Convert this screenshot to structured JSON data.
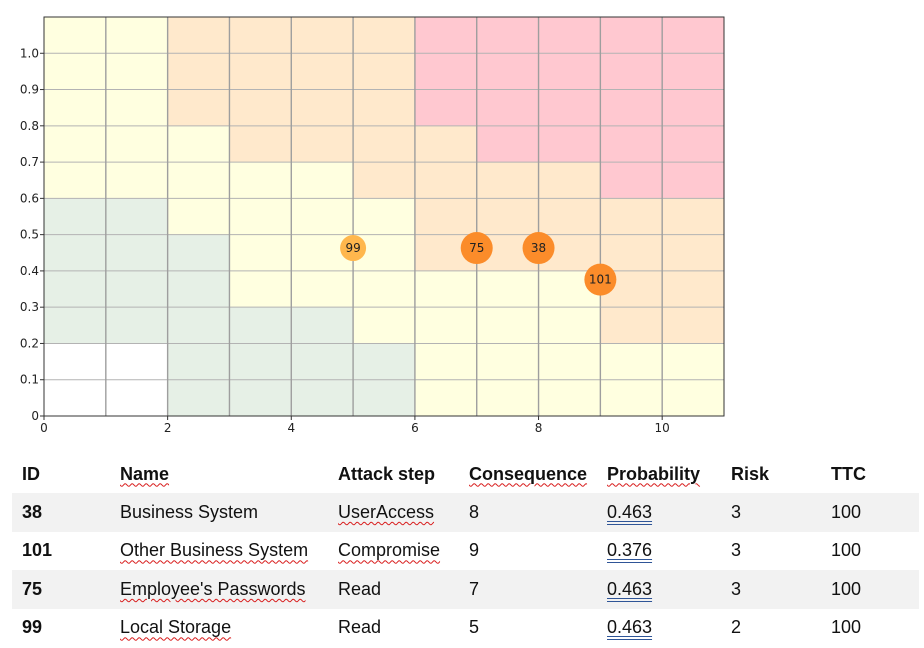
{
  "chart_data": {
    "type": "scatter",
    "title": "",
    "xlabel": "",
    "ylabel": "",
    "xlim": [
      0,
      11
    ],
    "ylim": [
      0,
      1.1
    ],
    "x_ticks": [
      "0",
      "2",
      "4",
      "6",
      "8",
      "10"
    ],
    "y_ticks": [
      "0",
      "0.1",
      "0.2",
      "0.3",
      "0.4",
      "0.5",
      "0.6",
      "0.7",
      "0.8",
      "0.9",
      "1.0"
    ],
    "grid": true,
    "zone_colors": {
      "none": "#ffffff",
      "low": "#e6f0e6",
      "medium": "#ffffe0",
      "high": "#ffe9cc",
      "critical": "#ffc8d0"
    },
    "zones": [
      {
        "level": "none",
        "x": [
          0,
          2
        ],
        "y": [
          0,
          0.2
        ]
      },
      {
        "level": "low",
        "x": [
          0,
          2
        ],
        "y": [
          0.2,
          0.6
        ]
      },
      {
        "level": "medium",
        "x": [
          0,
          2
        ],
        "y": [
          0.6,
          1.1
        ]
      },
      {
        "level": "low",
        "x": [
          2,
          3
        ],
        "y": [
          0,
          0.5
        ]
      },
      {
        "level": "medium",
        "x": [
          2,
          3
        ],
        "y": [
          0.5,
          0.8
        ]
      },
      {
        "level": "high",
        "x": [
          2,
          3
        ],
        "y": [
          0.8,
          1.1
        ]
      },
      {
        "level": "low",
        "x": [
          3,
          5
        ],
        "y": [
          0,
          0.3
        ]
      },
      {
        "level": "medium",
        "x": [
          3,
          5
        ],
        "y": [
          0.3,
          0.7
        ]
      },
      {
        "level": "high",
        "x": [
          3,
          5
        ],
        "y": [
          0.7,
          1.1
        ]
      },
      {
        "level": "low",
        "x": [
          5,
          6
        ],
        "y": [
          0,
          0.2
        ]
      },
      {
        "level": "medium",
        "x": [
          5,
          6
        ],
        "y": [
          0.2,
          0.6
        ]
      },
      {
        "level": "high",
        "x": [
          5,
          6
        ],
        "y": [
          0.6,
          1.1
        ]
      },
      {
        "level": "medium",
        "x": [
          6,
          7
        ],
        "y": [
          0,
          0.4
        ]
      },
      {
        "level": "high",
        "x": [
          6,
          7
        ],
        "y": [
          0.4,
          0.8
        ]
      },
      {
        "level": "critical",
        "x": [
          6,
          7
        ],
        "y": [
          0.8,
          1.1
        ]
      },
      {
        "level": "medium",
        "x": [
          7,
          9
        ],
        "y": [
          0,
          0.4
        ]
      },
      {
        "level": "high",
        "x": [
          7,
          9
        ],
        "y": [
          0.4,
          0.7
        ]
      },
      {
        "level": "critical",
        "x": [
          7,
          9
        ],
        "y": [
          0.7,
          1.1
        ]
      },
      {
        "level": "medium",
        "x": [
          9,
          11
        ],
        "y": [
          0,
          0.2
        ]
      },
      {
        "level": "high",
        "x": [
          9,
          11
        ],
        "y": [
          0.2,
          0.6
        ]
      },
      {
        "level": "critical",
        "x": [
          9,
          11
        ],
        "y": [
          0.6,
          1.1
        ]
      }
    ],
    "points": [
      {
        "id": "99",
        "x": 5,
        "y": 0.463,
        "color": "#ffb74d",
        "size": "small"
      },
      {
        "id": "75",
        "x": 7,
        "y": 0.463,
        "color": "#fb8c2a",
        "size": "large"
      },
      {
        "id": "38",
        "x": 8,
        "y": 0.463,
        "color": "#fb8c2a",
        "size": "large"
      },
      {
        "id": "101",
        "x": 9,
        "y": 0.376,
        "color": "#fb8c2a",
        "size": "large"
      }
    ]
  },
  "table": {
    "headers": {
      "id": "ID",
      "name": "Name",
      "attack_step": "Attack step",
      "consequence": "Consequence",
      "probability": "Probability",
      "risk": "Risk",
      "ttc": "TTC"
    },
    "rows": [
      {
        "id": "38",
        "name": "Business System",
        "attack_step": "UserAccess",
        "consequence": "8",
        "probability": "0.463",
        "risk": "3",
        "ttc": "100"
      },
      {
        "id": "101",
        "name": "Other Business System",
        "attack_step": "Compromise",
        "consequence": "9",
        "probability": "0.376",
        "risk": "3",
        "ttc": "100"
      },
      {
        "id": "75",
        "name": "Employee's Passwords",
        "attack_step": "Read",
        "consequence": "7",
        "probability": "0.463",
        "risk": "3",
        "ttc": "100"
      },
      {
        "id": "99",
        "name": "Local Storage",
        "attack_step": "Read",
        "consequence": "5",
        "probability": "0.463",
        "risk": "2",
        "ttc": "100"
      }
    ]
  }
}
